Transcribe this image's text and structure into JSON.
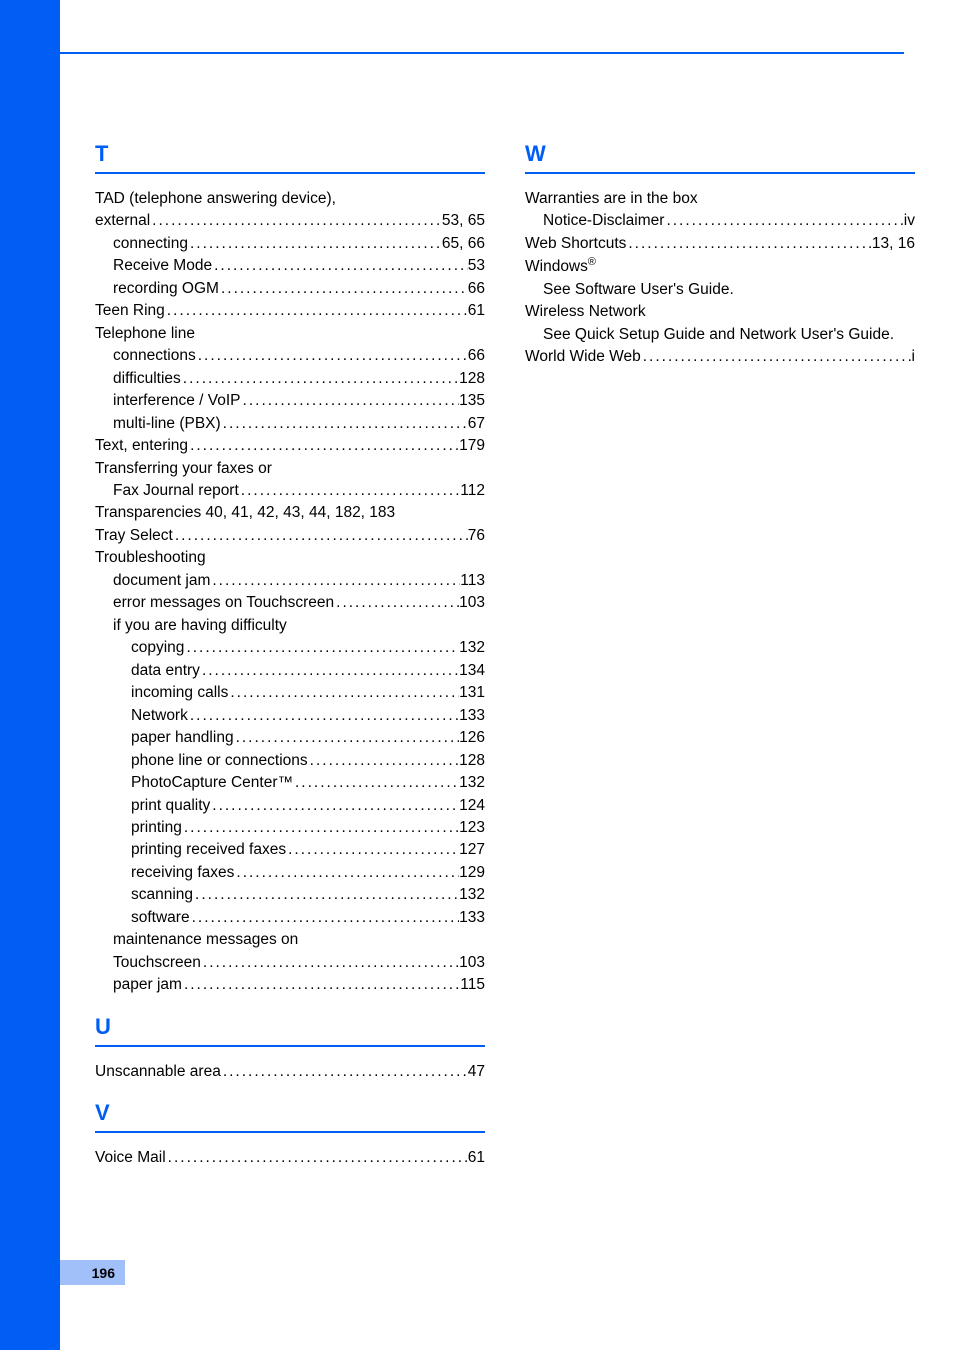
{
  "page_number": "196",
  "colors": {
    "blue": "#005ef5",
    "tab_blue": "#005ef5",
    "page_box": "#a1c0f9",
    "text": "#000000",
    "bg": "#ffffff"
  },
  "left_column": {
    "sections": [
      {
        "letter": "T",
        "lines": [
          {
            "type": "plain",
            "indent": 0,
            "text": "TAD (telephone answering device),"
          },
          {
            "type": "entry",
            "indent": 0,
            "label": "external",
            "page": "53, 65"
          },
          {
            "type": "entry",
            "indent": 1,
            "label": "connecting",
            "page": "65, 66"
          },
          {
            "type": "entry",
            "indent": 1,
            "label": "Receive Mode",
            "page": "53"
          },
          {
            "type": "entry",
            "indent": 1,
            "label": "recording OGM",
            "page": "66"
          },
          {
            "type": "entry",
            "indent": 0,
            "label": "Teen Ring",
            "page": "61"
          },
          {
            "type": "plain",
            "indent": 0,
            "text": "Telephone line"
          },
          {
            "type": "entry",
            "indent": 1,
            "label": "connections",
            "page": "66"
          },
          {
            "type": "entry",
            "indent": 1,
            "label": "difficulties",
            "page": "128"
          },
          {
            "type": "entry",
            "indent": 1,
            "label": "interference / VoIP",
            "page": "135"
          },
          {
            "type": "entry",
            "indent": 1,
            "label": "multi-line (PBX)",
            "page": "67"
          },
          {
            "type": "entry",
            "indent": 0,
            "label": "Text, entering",
            "page": "179"
          },
          {
            "type": "plain",
            "indent": 0,
            "text": "Transferring your faxes or"
          },
          {
            "type": "entry",
            "indent": 1,
            "label": "Fax Journal report",
            "page": "112"
          },
          {
            "type": "plain-right",
            "indent": 0,
            "text": "Transparencies 40, 41, 42, 43, 44, 182, 183"
          },
          {
            "type": "entry",
            "indent": 0,
            "label": "Tray Select",
            "page": "76"
          },
          {
            "type": "plain",
            "indent": 0,
            "text": "Troubleshooting"
          },
          {
            "type": "entry",
            "indent": 1,
            "label": "document jam",
            "page": "113"
          },
          {
            "type": "entry",
            "indent": 1,
            "label": "error messages on Touchscreen",
            "page": "103"
          },
          {
            "type": "plain",
            "indent": 1,
            "text": "if you are having difficulty"
          },
          {
            "type": "entry",
            "indent": 2,
            "label": "copying",
            "page": "132"
          },
          {
            "type": "entry",
            "indent": 2,
            "label": "data entry",
            "page": "134"
          },
          {
            "type": "entry",
            "indent": 2,
            "label": "incoming calls",
            "page": "131"
          },
          {
            "type": "entry",
            "indent": 2,
            "label": "Network",
            "page": "133"
          },
          {
            "type": "entry",
            "indent": 2,
            "label": "paper handling",
            "page": "126"
          },
          {
            "type": "entry",
            "indent": 2,
            "label": "phone line or connections",
            "page": "128"
          },
          {
            "type": "entry",
            "indent": 2,
            "label": "PhotoCapture Center™",
            "page": "132"
          },
          {
            "type": "entry",
            "indent": 2,
            "label": "print quality",
            "page": "124"
          },
          {
            "type": "entry",
            "indent": 2,
            "label": "printing",
            "page": "123"
          },
          {
            "type": "entry",
            "indent": 2,
            "label": "printing received faxes",
            "page": "127"
          },
          {
            "type": "entry",
            "indent": 2,
            "label": "receiving faxes",
            "page": "129"
          },
          {
            "type": "entry",
            "indent": 2,
            "label": "scanning",
            "page": "132"
          },
          {
            "type": "entry",
            "indent": 2,
            "label": "software",
            "page": "133"
          },
          {
            "type": "plain",
            "indent": 1,
            "text": "maintenance messages on"
          },
          {
            "type": "entry",
            "indent": 1,
            "label": "Touchscreen",
            "page": "103"
          },
          {
            "type": "entry",
            "indent": 1,
            "label": "paper jam",
            "page": "115"
          }
        ]
      },
      {
        "letter": "U",
        "lines": [
          {
            "type": "entry",
            "indent": 0,
            "label": "Unscannable area",
            "page": "47"
          }
        ]
      },
      {
        "letter": "V",
        "lines": [
          {
            "type": "entry",
            "indent": 0,
            "label": "Voice Mail",
            "page": "61"
          }
        ]
      }
    ]
  },
  "right_column": {
    "sections": [
      {
        "letter": "W",
        "lines": [
          {
            "type": "plain",
            "indent": 0,
            "text": "Warranties are in the box"
          },
          {
            "type": "entry",
            "indent": 1,
            "label": "Notice-Disclaimer",
            "page": "iv"
          },
          {
            "type": "entry",
            "indent": 0,
            "label": "Web Shortcuts",
            "page": "13, 16"
          },
          {
            "type": "plain-html",
            "indent": 0,
            "html": "Windows<sup>®</sup>"
          },
          {
            "type": "plain",
            "indent": 1,
            "text": "See Software User's Guide."
          },
          {
            "type": "plain",
            "indent": 0,
            "text": "Wireless Network"
          },
          {
            "type": "plain",
            "indent": 1,
            "text": "See Quick Setup Guide and Network User's Guide."
          },
          {
            "type": "entry",
            "indent": 0,
            "label": "World Wide Web",
            "page": "i"
          }
        ]
      }
    ]
  }
}
